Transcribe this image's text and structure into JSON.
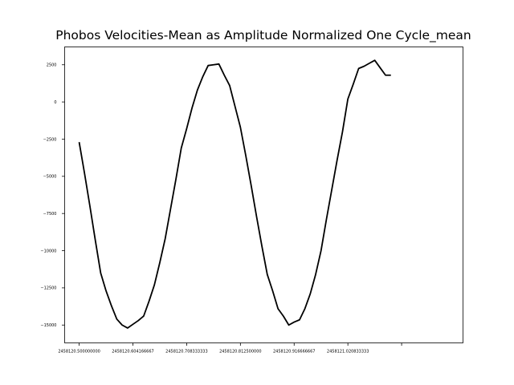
{
  "chart_data": {
    "type": "line",
    "title": "Phobos Velocities-Mean as Amplitude Normalized One Cycle_mean",
    "xlabel": "",
    "ylabel": "",
    "xlim": [
      2458120.47187,
      2458121.24396
    ],
    "ylim": [
      -16200,
      3700
    ],
    "x_ticks": [
      2458120.5,
      2458120.604166667,
      2458120.708333333,
      2458120.8125,
      2458120.916666667,
      2458121.020833333,
      2458121.125
    ],
    "x_tick_labels": [
      "2458120.500000000",
      "2458120.604166667",
      "2458120.708333333",
      "2458120.812500000",
      "2458120.916666667",
      "2458121.020833333",
      ""
    ],
    "y_ticks": [
      2500,
      0,
      -2500,
      -5000,
      -7500,
      -10000,
      -12500,
      -15000
    ],
    "y_tick_labels": [
      "2500",
      "0",
      "−2500",
      "−5000",
      "−7500",
      "−10000",
      "−12500",
      "−15000"
    ],
    "grid": false,
    "series": [
      {
        "color": "#000000",
        "x": [
          2458120.5,
          2458120.5104,
          2458120.5208,
          2458120.5313,
          2458120.5417,
          2458120.5521,
          2458120.5625,
          2458120.5729,
          2458120.5833,
          2458120.5938,
          2458120.6042,
          2458120.6146,
          2458120.625,
          2458120.6354,
          2458120.6458,
          2458120.6563,
          2458120.6667,
          2458120.6771,
          2458120.6875,
          2458120.6979,
          2458120.7083,
          2458120.7188,
          2458120.7292,
          2458120.7396,
          2458120.75,
          2458120.7604,
          2458120.7708,
          2458120.7813,
          2458120.7917,
          2458120.8021,
          2458120.8125,
          2458120.8229,
          2458120.8333,
          2458120.8438,
          2458120.8542,
          2458120.8646,
          2458120.875,
          2458120.8854,
          2458120.8958,
          2458120.9063,
          2458120.9167,
          2458120.9271,
          2458120.9375,
          2458120.9479,
          2458120.9583,
          2458120.9688,
          2458120.9792,
          2458120.9896,
          2458121.0,
          2458121.0104,
          2458121.0208,
          2458121.0313,
          2458121.0417,
          2458121.0521,
          2458121.0625,
          2458121.0729,
          2458121.0833,
          2458121.0938,
          2458121.1042
        ],
        "y": [
          -2700,
          -4800,
          -7000,
          -9300,
          -11500,
          -12700,
          -13700,
          -14600,
          -15000,
          -15200,
          -14950,
          -14700,
          -14400,
          -13400,
          -12300,
          -10800,
          -9200,
          -7200,
          -5200,
          -3100,
          -1800,
          -400,
          800,
          1700,
          2450,
          2500,
          2550,
          1800,
          1100,
          -300,
          -1700,
          -3600,
          -5600,
          -7700,
          -9700,
          -11600,
          -12700,
          -13900,
          -14400,
          -15000,
          -14800,
          -14650,
          -13900,
          -12900,
          -11600,
          -10000,
          -7900,
          -5900,
          -3900,
          -2000,
          200,
          1200,
          2250,
          2400,
          2600,
          2800,
          2300,
          1800,
          1800
        ]
      }
    ]
  }
}
